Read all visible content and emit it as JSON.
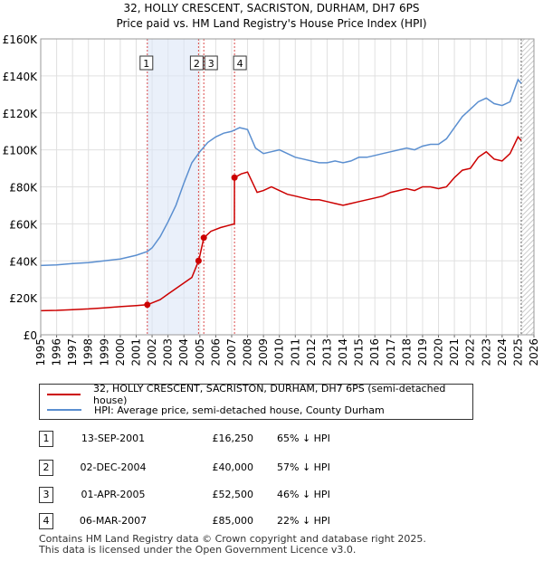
{
  "chart_data": {
    "type": "line",
    "title": "32, HOLLY CRESCENT, SACRISTON, DURHAM, DH7 6PS",
    "subtitle": "Price paid vs. HM Land Registry's House Price Index (HPI)",
    "xlabel": "",
    "ylabel": "",
    "xlim": [
      1995,
      2026
    ],
    "ylim": [
      0,
      160000
    ],
    "y_ticks": [
      0,
      20000,
      40000,
      60000,
      80000,
      100000,
      120000,
      140000,
      160000
    ],
    "y_tick_labels": [
      "£0",
      "£20K",
      "£40K",
      "£60K",
      "£80K",
      "£100K",
      "£120K",
      "£140K",
      "£160K"
    ],
    "x_ticks": [
      1995,
      1996,
      1997,
      1998,
      1999,
      2000,
      2001,
      2002,
      2003,
      2004,
      2005,
      2006,
      2007,
      2008,
      2009,
      2010,
      2011,
      2012,
      2013,
      2014,
      2015,
      2016,
      2017,
      2018,
      2019,
      2020,
      2021,
      2022,
      2023,
      2024,
      2025,
      2026
    ],
    "x_tick_labels": [
      "1995",
      "1996",
      "1997",
      "1998",
      "1999",
      "2000",
      "2001",
      "2002",
      "2003",
      "2004",
      "2005",
      "2006",
      "2007",
      "2008",
      "2009",
      "2010",
      "2011",
      "2012",
      "2013",
      "2014",
      "2015",
      "2016",
      "2017",
      "2018",
      "2019",
      "2020",
      "2021",
      "2022",
      "2023",
      "2024",
      "2025",
      "2026"
    ],
    "grid": true,
    "shaded_regions": [
      [
        2001.7,
        2004.92
      ]
    ],
    "future_hatch_start": 2025.2,
    "series": [
      {
        "name": "32, HOLLY CRESCENT, SACRISTON, DURHAM, DH7 6PS (semi-detached house)",
        "color": "#cc0000",
        "x": [
          1995.0,
          1996.0,
          1997.0,
          1998.0,
          1999.0,
          2000.0,
          2001.0,
          2001.7,
          2001.71,
          2002.5,
          2003.0,
          2003.5,
          2004.0,
          2004.5,
          2004.92,
          2004.93,
          2005.25,
          2005.26,
          2005.7,
          2006.3,
          2007.17,
          2007.18,
          2007.6,
          2008.0,
          2008.6,
          2009.0,
          2009.5,
          2010.0,
          2010.5,
          2011.0,
          2011.5,
          2012.0,
          2012.5,
          2013.0,
          2013.5,
          2014.0,
          2014.5,
          2015.0,
          2015.5,
          2016.0,
          2016.5,
          2017.0,
          2017.5,
          2018.0,
          2018.5,
          2019.0,
          2019.5,
          2020.0,
          2020.5,
          2021.0,
          2021.5,
          2022.0,
          2022.5,
          2023.0,
          2023.5,
          2024.0,
          2024.5,
          2025.0,
          2025.2
        ],
        "values": [
          13000,
          13200,
          13600,
          14000,
          14600,
          15200,
          15800,
          16250,
          16250,
          19000,
          22000,
          25000,
          28000,
          31000,
          40000,
          40000,
          52500,
          52500,
          56000,
          58000,
          60000,
          85000,
          87000,
          88000,
          77000,
          78000,
          80000,
          78000,
          76000,
          75000,
          74000,
          73000,
          73000,
          72000,
          71000,
          70000,
          71000,
          72000,
          73000,
          74000,
          75000,
          77000,
          78000,
          79000,
          78000,
          80000,
          80000,
          79000,
          80000,
          85000,
          89000,
          90000,
          96000,
          99000,
          95000,
          94000,
          98000,
          107000,
          105000
        ]
      },
      {
        "name": "HPI: Average price, semi-detached house, County Durham",
        "color": "#5b8fd0",
        "x": [
          1995.0,
          1996.0,
          1997.0,
          1998.0,
          1999.0,
          2000.0,
          2001.0,
          2001.7,
          2002.0,
          2002.5,
          2003.0,
          2003.5,
          2004.0,
          2004.5,
          2005.0,
          2005.5,
          2006.0,
          2006.5,
          2007.0,
          2007.5,
          2008.0,
          2008.5,
          2009.0,
          2009.5,
          2010.0,
          2010.5,
          2011.0,
          2011.5,
          2012.0,
          2012.5,
          2013.0,
          2013.5,
          2014.0,
          2014.5,
          2015.0,
          2015.5,
          2016.0,
          2016.5,
          2017.0,
          2017.5,
          2018.0,
          2018.5,
          2019.0,
          2019.5,
          2020.0,
          2020.5,
          2021.0,
          2021.5,
          2022.0,
          2022.5,
          2023.0,
          2023.5,
          2024.0,
          2024.5,
          2025.0,
          2025.2
        ],
        "values": [
          37500,
          37800,
          38500,
          39000,
          40000,
          41000,
          43000,
          45000,
          47000,
          53000,
          61000,
          70000,
          82000,
          93000,
          99000,
          104000,
          107000,
          109000,
          110000,
          112000,
          111000,
          101000,
          98000,
          99000,
          100000,
          98000,
          96000,
          95000,
          94000,
          93000,
          93000,
          94000,
          93000,
          94000,
          96000,
          96000,
          97000,
          98000,
          99000,
          100000,
          101000,
          100000,
          102000,
          103000,
          103000,
          106000,
          112000,
          118000,
          122000,
          126000,
          128000,
          125000,
          124000,
          126000,
          138000,
          136000
        ]
      }
    ],
    "transactions": [
      {
        "label": "1",
        "x": 2001.7,
        "value": 16250
      },
      {
        "label": "2",
        "x": 2004.92,
        "value": 40000
      },
      {
        "label": "3",
        "x": 2005.25,
        "value": 52500
      },
      {
        "label": "4",
        "x": 2007.18,
        "value": 85000
      }
    ]
  },
  "legend": {
    "items": [
      {
        "label": "32, HOLLY CRESCENT, SACRISTON, DURHAM, DH7 6PS (semi-detached house)",
        "color": "#cc0000"
      },
      {
        "label": "HPI: Average price, semi-detached house, County Durham",
        "color": "#5b8fd0"
      }
    ]
  },
  "sales": [
    {
      "num": "1",
      "date": "13-SEP-2001",
      "price": "£16,250",
      "hpi": "65% ↓ HPI"
    },
    {
      "num": "2",
      "date": "02-DEC-2004",
      "price": "£40,000",
      "hpi": "57% ↓ HPI"
    },
    {
      "num": "3",
      "date": "01-APR-2005",
      "price": "£52,500",
      "hpi": "46% ↓ HPI"
    },
    {
      "num": "4",
      "date": "06-MAR-2007",
      "price": "£85,000",
      "hpi": "22% ↓ HPI"
    }
  ],
  "footer": {
    "line1": "Contains HM Land Registry data © Crown copyright and database right 2025.",
    "line2": "This data is licensed under the Open Government Licence v3.0."
  }
}
